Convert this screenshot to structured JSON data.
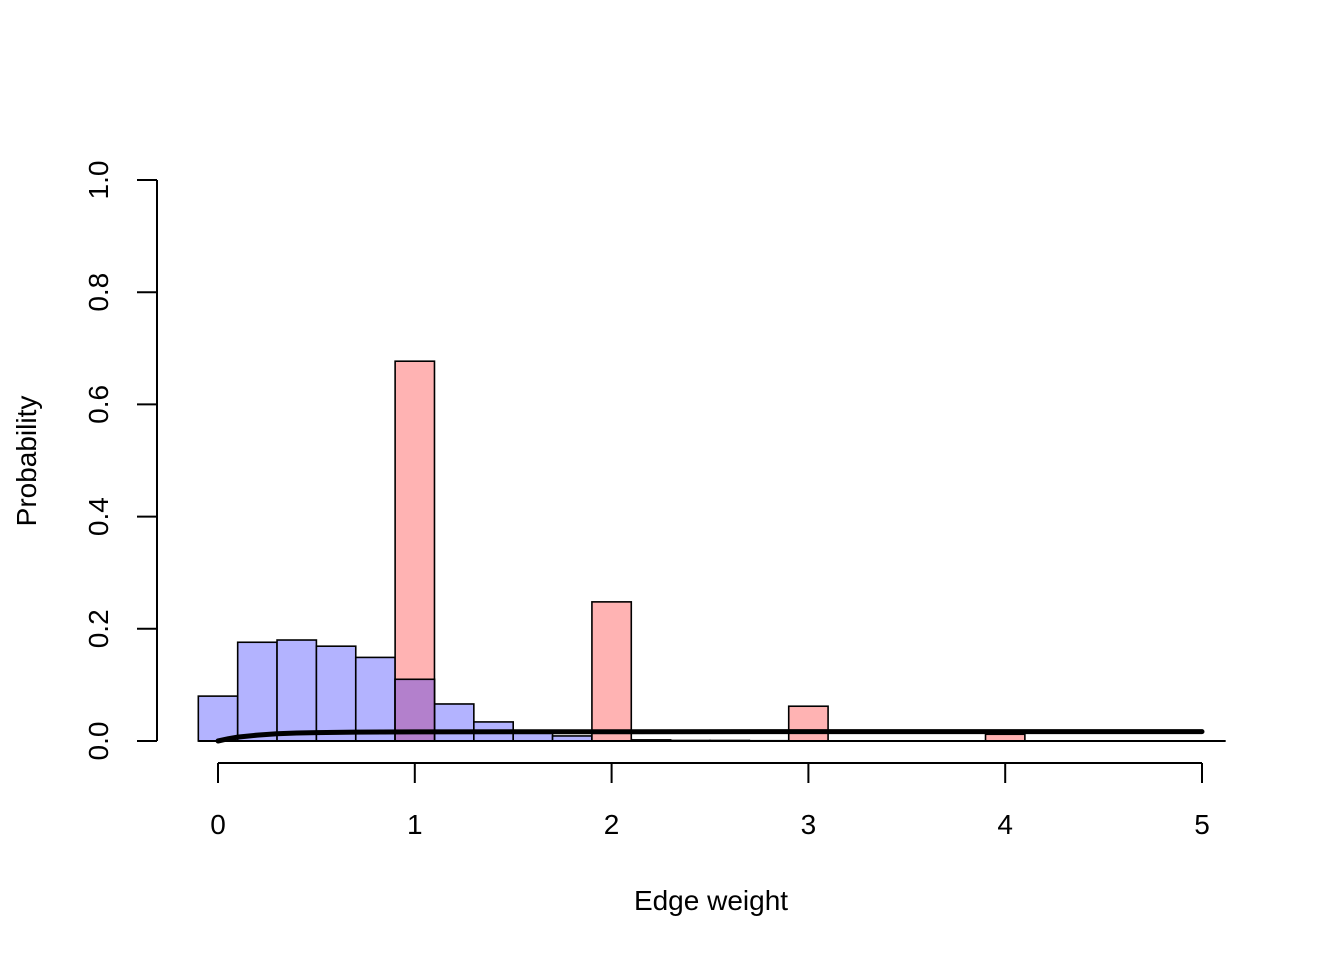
{
  "chart_data": {
    "type": "bar",
    "title": "",
    "xlabel": "Edge weight",
    "ylabel": "Probability",
    "xlim": [
      -0.1,
      5.1
    ],
    "ylim": [
      0,
      1.0
    ],
    "xticks": [
      0,
      1,
      2,
      3,
      4,
      5
    ],
    "xtick_labels": [
      "0",
      "1",
      "2",
      "3",
      "4",
      "5"
    ],
    "yticks": [
      0,
      0.2,
      0.4,
      0.6,
      0.8,
      1.0
    ],
    "ytick_labels": [
      "0.0",
      "0.2",
      "0.4",
      "0.6",
      "0.8",
      "1.0"
    ],
    "grid": false,
    "legend": "none",
    "series": [
      {
        "color": "#b3b3ff",
        "bins": [
          {
            "x0": -0.1,
            "x1": 0.1,
            "value": 0.08
          },
          {
            "x0": 0.1,
            "x1": 0.3,
            "value": 0.176
          },
          {
            "x0": 0.3,
            "x1": 0.5,
            "value": 0.18
          },
          {
            "x0": 0.5,
            "x1": 0.7,
            "value": 0.169
          },
          {
            "x0": 0.7,
            "x1": 0.9,
            "value": 0.149
          },
          {
            "x0": 0.9,
            "x1": 1.1,
            "value": 0.11
          },
          {
            "x0": 1.1,
            "x1": 1.3,
            "value": 0.066
          },
          {
            "x0": 1.3,
            "x1": 1.5,
            "value": 0.034
          },
          {
            "x0": 1.5,
            "x1": 1.7,
            "value": 0.018
          },
          {
            "x0": 1.7,
            "x1": 1.9,
            "value": 0.009
          },
          {
            "x0": 1.9,
            "x1": 2.1,
            "value": 0.004
          },
          {
            "x0": 2.1,
            "x1": 2.3,
            "value": 0.002
          },
          {
            "x0": 2.3,
            "x1": 2.5,
            "value": 0.001
          },
          {
            "x0": 2.5,
            "x1": 2.7,
            "value": 0.001
          },
          {
            "x0": 2.7,
            "x1": 2.9,
            "value": 0.0005
          },
          {
            "x0": 2.9,
            "x1": 3.1,
            "value": 0.0005
          },
          {
            "x0": 3.1,
            "x1": 3.3,
            "value": 0.0003
          },
          {
            "x0": 3.3,
            "x1": 3.5,
            "value": 0.0003
          },
          {
            "x0": 3.5,
            "x1": 3.7,
            "value": 0.0002
          },
          {
            "x0": 3.7,
            "x1": 3.9,
            "value": 0.0002
          },
          {
            "x0": 3.9,
            "x1": 4.1,
            "value": 0.0001
          },
          {
            "x0": 4.1,
            "x1": 4.3,
            "value": 0.0001
          },
          {
            "x0": 4.3,
            "x1": 4.5,
            "value": 0.0001
          },
          {
            "x0": 4.5,
            "x1": 4.7,
            "value": 0.0001
          },
          {
            "x0": 4.7,
            "x1": 4.9,
            "value": 0.0001
          },
          {
            "x0": 4.9,
            "x1": 5.1,
            "value": 0.0001
          }
        ]
      },
      {
        "color": "#ffb3b3",
        "bins": [
          {
            "x0": 0.9,
            "x1": 1.1,
            "value": 0.677
          },
          {
            "x0": 1.9,
            "x1": 2.1,
            "value": 0.248
          },
          {
            "x0": 2.9,
            "x1": 3.1,
            "value": 0.062
          },
          {
            "x0": 3.9,
            "x1": 4.1,
            "value": 0.012
          }
        ]
      },
      {
        "color": "#b380cc",
        "bins": [
          {
            "x0": 0.9,
            "x1": 1.1,
            "value": 0.11
          }
        ]
      }
    ],
    "curve": {
      "color": "#000000",
      "x": [
        0,
        0.05,
        0.1,
        0.2,
        0.3,
        0.4,
        0.5,
        0.7,
        1.0,
        1.5,
        2.0,
        3.0,
        4.0,
        5.0
      ],
      "y": [
        0,
        0.004,
        0.007,
        0.0105,
        0.0128,
        0.0142,
        0.015,
        0.0158,
        0.0162,
        0.0165,
        0.0166,
        0.0167,
        0.0167,
        0.0167
      ]
    }
  }
}
